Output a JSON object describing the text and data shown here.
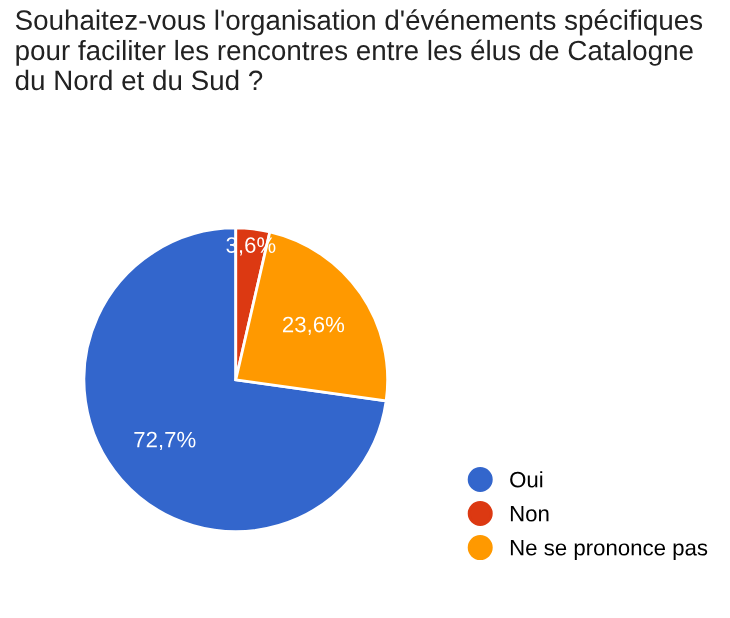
{
  "chart_data": {
    "type": "pie",
    "title": "Souhaitez-vous l'organisation d'événements spécifiques pour faciliter les rencontres entre les élus de Catalogne du Nord et du Sud ?",
    "categories": [
      "Oui",
      "Non",
      "Ne se prononce pas"
    ],
    "values": [
      72.7,
      3.6,
      23.6
    ],
    "value_labels": [
      "72,7%",
      "3,6%",
      "23,6%"
    ],
    "colors": [
      "#3366cc",
      "#dc3912",
      "#ff9900"
    ],
    "legend": "right"
  }
}
